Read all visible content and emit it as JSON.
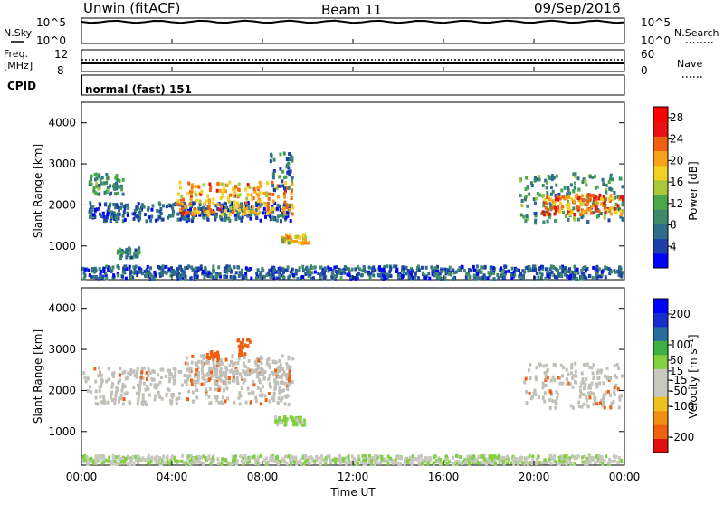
{
  "header": {
    "station": "Unwin (fitACF)",
    "beam": "Beam 11",
    "date": "09/Sep/2016"
  },
  "strips": {
    "nsky_label": "N.Sky",
    "freq_label": "Freq.",
    "freq_unit": "[MHz]",
    "cpid_label": "CPID",
    "nsearch_label": "N.Search",
    "nave_label": "Nave",
    "nsky_ticks": [
      "10^5",
      "10^0"
    ],
    "nsearch_ticks": [
      "10^5",
      "10^0"
    ],
    "freq_ticks": [
      "12",
      "8"
    ],
    "nave_ticks": [
      "60",
      "0"
    ],
    "cpid_text": "normal (fast) 151"
  },
  "colors": {
    "power_scale": [
      "#0000ff",
      "#1c3fa8",
      "#2e6e8a",
      "#3c8a6a",
      "#4aa84a",
      "#a8c838",
      "#f0d020",
      "#f8a018",
      "#f06010",
      "#e81010",
      "#ff0000"
    ],
    "velocity_scale": [
      "#0000ff",
      "#1a2ed0",
      "#2a6ea0",
      "#3cb040",
      "#80d040",
      "#c8c8c0",
      "#c8c8c0",
      "#f0c020",
      "#f09010",
      "#f06010",
      "#e01010"
    ],
    "gray_scatter": "#c0c0b8"
  },
  "chart_data": [
    {
      "type": "heatmap",
      "title": "",
      "xlabel": "Time UT",
      "ylabel": "Slant Range [km]",
      "xlim_hours": [
        0,
        24
      ],
      "ylim": [
        180,
        4500
      ],
      "x_ticks": [
        "00:00",
        "04:00",
        "08:00",
        "12:00",
        "16:00",
        "20:00",
        "00:00"
      ],
      "y_ticks": [
        "1000",
        "2000",
        "3000",
        "4000"
      ],
      "colorbar": {
        "label": "Power [dB]",
        "ticks": [
          "4",
          "8",
          "12",
          "16",
          "20",
          "24",
          "28"
        ],
        "range": [
          0,
          30
        ]
      },
      "regions": [
        {
          "t0": 0.3,
          "t1": 9.2,
          "r0": 1650,
          "r1": 2100,
          "level": 6
        },
        {
          "t0": 4.2,
          "t1": 9.3,
          "r0": 1800,
          "r1": 2600,
          "level": 20
        },
        {
          "t0": 0.3,
          "t1": 1.8,
          "r0": 2300,
          "r1": 2800,
          "level": 10
        },
        {
          "t0": 8.3,
          "t1": 9.3,
          "r0": 2400,
          "r1": 3300,
          "level": 8
        },
        {
          "t0": 19.3,
          "t1": 24,
          "r0": 1600,
          "r1": 2800,
          "level": 10
        },
        {
          "t0": 20.3,
          "t1": 24,
          "r0": 1800,
          "r1": 2300,
          "level": 22
        },
        {
          "t0": 8.8,
          "t1": 10.0,
          "r0": 1100,
          "r1": 1300,
          "level": 18
        },
        {
          "t0": 1.5,
          "t1": 2.5,
          "r0": 750,
          "r1": 1000,
          "level": 8
        },
        {
          "t0": 0.0,
          "t1": 24,
          "r0": 200,
          "r1": 550,
          "level": 6
        }
      ]
    },
    {
      "type": "heatmap",
      "title": "",
      "xlabel": "Time UT",
      "ylabel": "Slant Range [km]",
      "xlim_hours": [
        0,
        24
      ],
      "ylim": [
        180,
        4500
      ],
      "x_ticks": [
        "00:00",
        "04:00",
        "08:00",
        "12:00",
        "16:00",
        "20:00",
        "00:00"
      ],
      "y_ticks": [
        "1000",
        "2000",
        "3000",
        "4000"
      ],
      "colorbar": {
        "label": "Velocity [m s⁻¹]",
        "ticks": [
          "-200",
          "-100",
          "-50",
          "-15",
          "15",
          "50",
          "100",
          "200"
        ],
        "range": [
          -250,
          250
        ]
      },
      "regions": [
        {
          "t0": 0.0,
          "t1": 9.2,
          "r0": 1700,
          "r1": 2600,
          "level": 0
        },
        {
          "t0": 4.5,
          "t1": 9.3,
          "r0": 2200,
          "r1": 2900,
          "level": 0
        },
        {
          "t0": 19.5,
          "t1": 24,
          "r0": 1600,
          "r1": 2700,
          "level": 0
        },
        {
          "t0": 6.8,
          "t1": 7.4,
          "r0": 2900,
          "r1": 3300,
          "level": -200
        },
        {
          "t0": 5.5,
          "t1": 6.0,
          "r0": 2800,
          "r1": 3000,
          "level": -200
        },
        {
          "t0": 8.5,
          "t1": 9.8,
          "r0": 1200,
          "r1": 1400,
          "level": 40
        },
        {
          "t0": 0.0,
          "t1": 24,
          "r0": 200,
          "r1": 450,
          "level": 20
        }
      ]
    }
  ]
}
